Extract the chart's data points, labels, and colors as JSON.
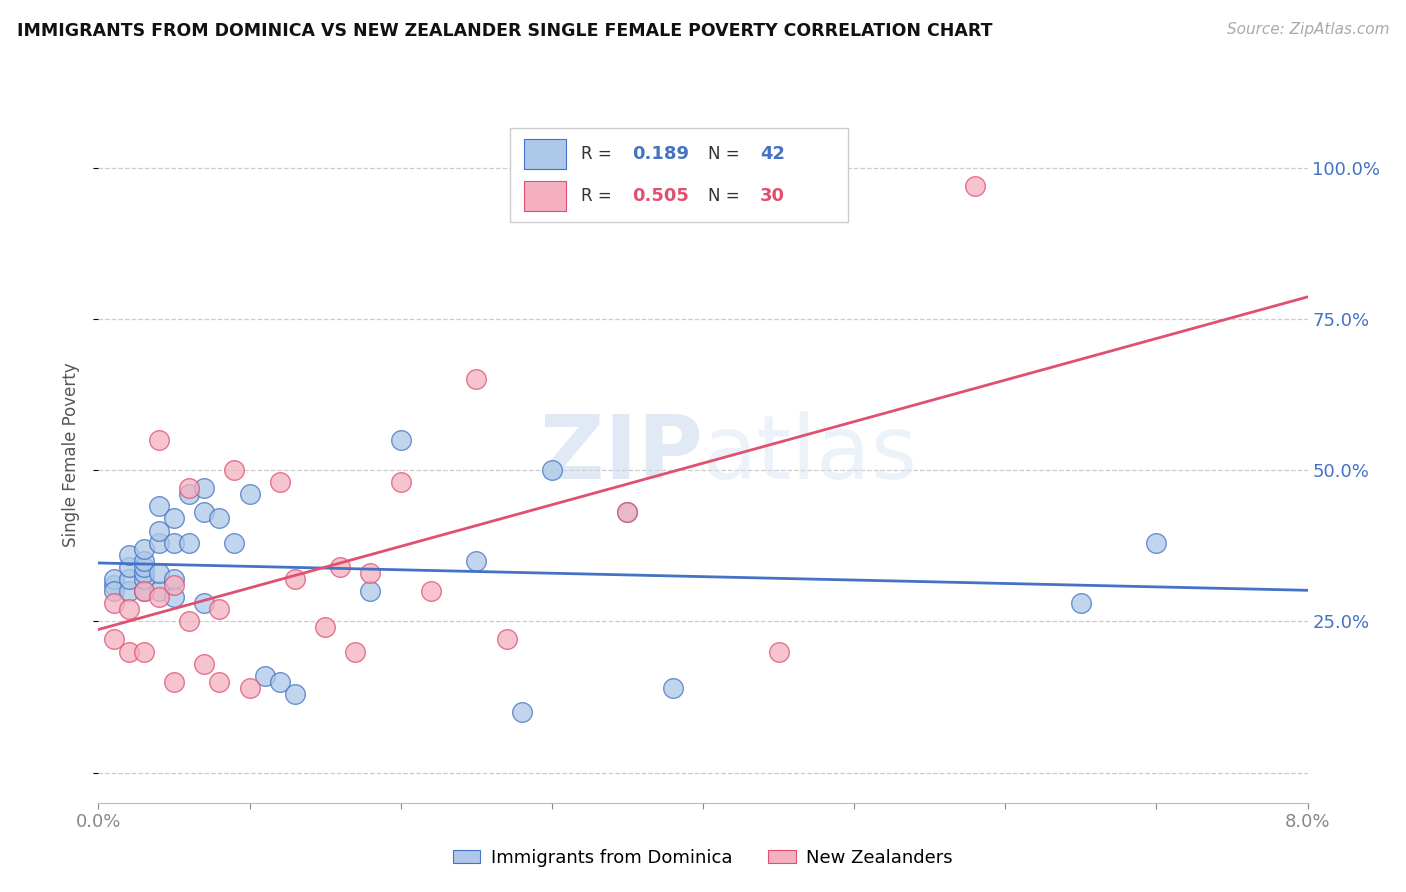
{
  "title": "IMMIGRANTS FROM DOMINICA VS NEW ZEALANDER SINGLE FEMALE POVERTY CORRELATION CHART",
  "source": "Source: ZipAtlas.com",
  "ylabel": "Single Female Poverty",
  "xlim": [
    0.0,
    0.08
  ],
  "ylim": [
    -0.05,
    1.1
  ],
  "xticks": [
    0.0,
    0.01,
    0.02,
    0.03,
    0.04,
    0.05,
    0.06,
    0.07,
    0.08
  ],
  "xticklabels": [
    "0.0%",
    "",
    "",
    "",
    "",
    "",
    "",
    "",
    "8.0%"
  ],
  "ytick_positions": [
    0.0,
    0.25,
    0.5,
    0.75,
    1.0
  ],
  "yticklabels": [
    "",
    "25.0%",
    "50.0%",
    "75.0%",
    "100.0%"
  ],
  "blue_R": 0.189,
  "blue_N": 42,
  "pink_R": 0.505,
  "pink_N": 30,
  "blue_color": "#adc8e8",
  "pink_color": "#f4b0c0",
  "blue_line_color": "#4472c4",
  "pink_line_color": "#e05070",
  "legend_label_blue": "Immigrants from Dominica",
  "legend_label_pink": "New Zealanders",
  "watermark_zip": "ZIP",
  "watermark_atlas": "atlas",
  "background_color": "#ffffff",
  "blue_scatter_x": [
    0.001,
    0.001,
    0.001,
    0.002,
    0.002,
    0.002,
    0.002,
    0.003,
    0.003,
    0.003,
    0.003,
    0.003,
    0.003,
    0.004,
    0.004,
    0.004,
    0.004,
    0.004,
    0.005,
    0.005,
    0.005,
    0.005,
    0.006,
    0.006,
    0.007,
    0.007,
    0.007,
    0.008,
    0.009,
    0.01,
    0.011,
    0.012,
    0.013,
    0.018,
    0.02,
    0.025,
    0.028,
    0.03,
    0.035,
    0.038,
    0.065,
    0.07
  ],
  "blue_scatter_y": [
    0.31,
    0.32,
    0.3,
    0.3,
    0.32,
    0.34,
    0.36,
    0.3,
    0.32,
    0.33,
    0.34,
    0.35,
    0.37,
    0.3,
    0.33,
    0.38,
    0.4,
    0.44,
    0.29,
    0.32,
    0.38,
    0.42,
    0.38,
    0.46,
    0.28,
    0.43,
    0.47,
    0.42,
    0.38,
    0.46,
    0.16,
    0.15,
    0.13,
    0.3,
    0.55,
    0.35,
    0.1,
    0.5,
    0.43,
    0.14,
    0.28,
    0.38
  ],
  "pink_scatter_x": [
    0.001,
    0.001,
    0.002,
    0.002,
    0.003,
    0.003,
    0.004,
    0.004,
    0.005,
    0.005,
    0.006,
    0.006,
    0.007,
    0.008,
    0.008,
    0.009,
    0.01,
    0.012,
    0.013,
    0.015,
    0.016,
    0.017,
    0.018,
    0.02,
    0.022,
    0.025,
    0.027,
    0.035,
    0.045,
    0.058
  ],
  "pink_scatter_y": [
    0.22,
    0.28,
    0.2,
    0.27,
    0.3,
    0.2,
    0.29,
    0.55,
    0.31,
    0.15,
    0.25,
    0.47,
    0.18,
    0.27,
    0.15,
    0.5,
    0.14,
    0.48,
    0.32,
    0.24,
    0.34,
    0.2,
    0.33,
    0.48,
    0.3,
    0.65,
    0.22,
    0.43,
    0.2,
    0.97
  ]
}
